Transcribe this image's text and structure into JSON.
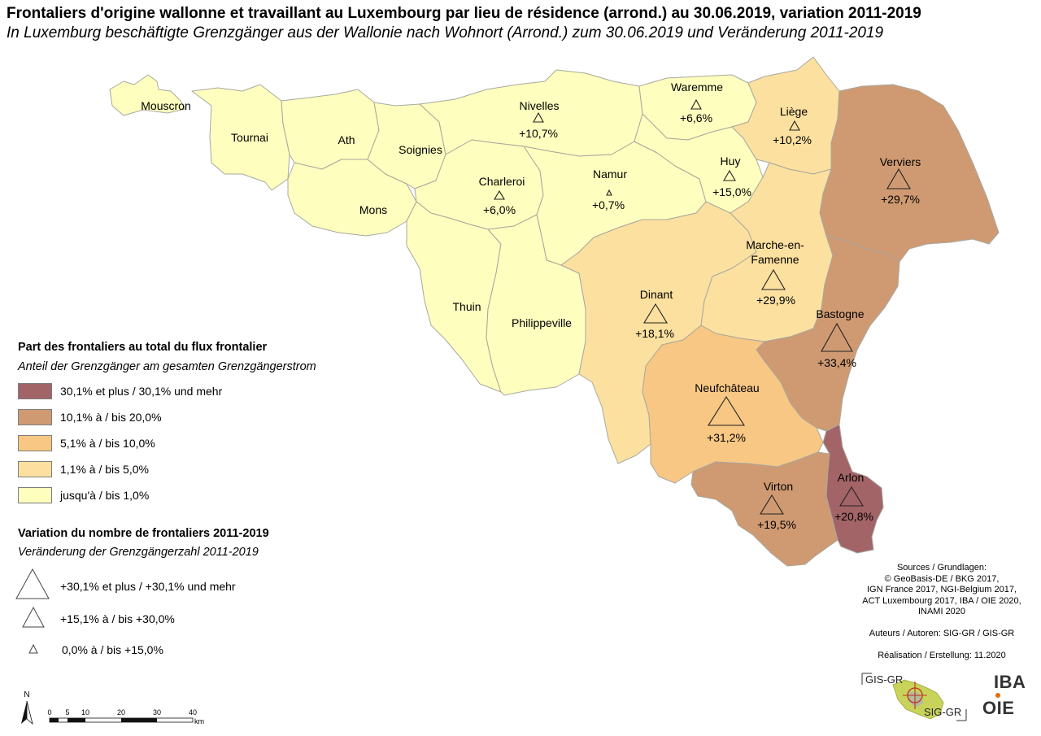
{
  "title_fr": "Frontaliers d'origine wallonne et travaillant au Luxembourg par lieu de résidence (arrond.) au 30.06.2019, variation 2011-2019",
  "title_de": "In Luxemburg beschäftigte Grenzgänger aus der Wallonie nach Wohnort (Arrond.) zum 30.06.2019 und Veränderung 2011-2019",
  "colors": {
    "class_1": "#a36467",
    "class_2": "#cf9a72",
    "class_3": "#f8c783",
    "class_4": "#fce09f",
    "class_5": "#fefebe",
    "border": "#a8a8a0"
  },
  "arrondissements": [
    {
      "name": "Mouscron",
      "change": ""
    },
    {
      "name": "Tournai",
      "change": ""
    },
    {
      "name": "Ath",
      "change": ""
    },
    {
      "name": "Soignies",
      "change": ""
    },
    {
      "name": "Mons",
      "change": ""
    },
    {
      "name": "Nivelles",
      "change": "+10,7%"
    },
    {
      "name": "Charleroi",
      "change": "+6,0%"
    },
    {
      "name": "Namur",
      "change": "+0,7%"
    },
    {
      "name": "Waremme",
      "change": "+6,6%"
    },
    {
      "name": "Liège",
      "change": "+10,2%"
    },
    {
      "name": "Huy",
      "change": "+15,0%"
    },
    {
      "name": "Verviers",
      "change": "+29,7%"
    },
    {
      "name": "Thuin",
      "change": ""
    },
    {
      "name": "Philippeville",
      "change": ""
    },
    {
      "name": "Dinant",
      "change": "+18,1%"
    },
    {
      "name": "Marche-en-",
      "name2": "Famenne",
      "change": "+29,9%"
    },
    {
      "name": "Bastogne",
      "change": "+33,4%"
    },
    {
      "name": "Neufchâteau",
      "change": "+31,2%"
    },
    {
      "name": "Virton",
      "change": "+19,5%"
    },
    {
      "name": "Arlon",
      "change": "+20,8%"
    }
  ],
  "legend_share": {
    "title": "Part des frontaliers au total du flux frontalier",
    "subtitle": "Anteil der Grenzgänger am gesamten Grenzgängerstrom",
    "classes": [
      "30,1% et plus / 30,1% und mehr",
      "10,1% à / bis 20,0%",
      "5,1% à / bis 10,0%",
      "1,1% à / bis 5,0%",
      "jusqu'à / bis 1,0%"
    ]
  },
  "legend_change": {
    "title": "Variation du nombre de frontaliers 2011-2019",
    "subtitle": "Veränderung der Grenzgängerzahl 2011-2019",
    "classes": [
      "+30,1% et plus / +30,1% und mehr",
      "+15,1% à / bis +30,0%",
      "0,0% à / bis +15,0%"
    ]
  },
  "scale": {
    "north": "N",
    "ticks": [
      "0",
      "5",
      "10",
      "20",
      "30",
      "40"
    ],
    "unit": "km"
  },
  "sources": [
    "Sources / Grundlagen:",
    "© GeoBasis-DE / BKG 2017,",
    "IGN France 2017, NGI-Belgium 2017,",
    "ACT Luxembourg 2017, IBA / OIE 2020,",
    "INAMI 2020",
    "",
    "Auteurs / Autoren: SIG-GR / GIS-GR",
    "",
    "Réalisation / Erstellung: 11.2020"
  ],
  "logos": {
    "gis_top": "GIS-GR",
    "sig_bottom": "SIG-GR",
    "iba": "IBA",
    "oie": "OIE"
  }
}
